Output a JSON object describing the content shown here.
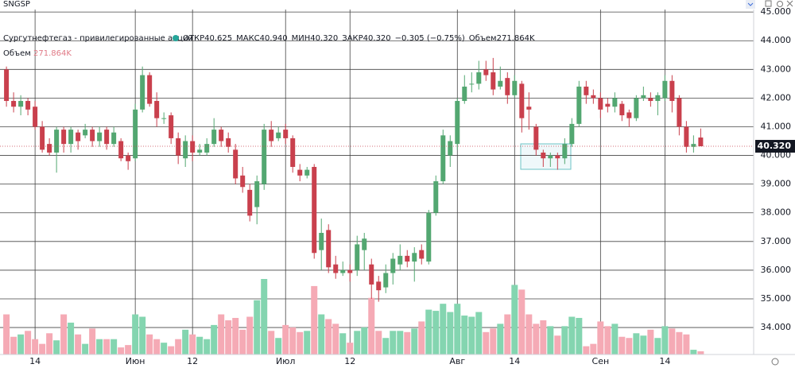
{
  "chart_data": {
    "type": "candlestick",
    "symbol": "SNGSP",
    "title": "Сургутнефтегаз - привилегированные акции",
    "legend_values": [
      "ОТКР40.625",
      "МАКС40.940",
      "МИН40.320",
      "ЗАКР40.320",
      "−0.305 (−0.75%)",
      "Объем271.864K"
    ],
    "volume_label": "Объем",
    "volume_value": "271.864K",
    "up_color": "#53a771",
    "down_color": "#c9404d",
    "up_volume_color": "#84d5b0",
    "down_volume_color": "#f5aab5",
    "grid": true,
    "xlim": [
      -0.9,
      104.4
    ],
    "xticks": [
      {
        "value": 4,
        "label": "14"
      },
      {
        "value": 18,
        "label": "Июн"
      },
      {
        "value": 26,
        "label": "12"
      },
      {
        "value": 39,
        "label": "Июл"
      },
      {
        "value": 48,
        "label": "12"
      },
      {
        "value": 63,
        "label": "Авг"
      },
      {
        "value": 71,
        "label": "14"
      },
      {
        "value": 83,
        "label": "Сен"
      },
      {
        "value": 92,
        "label": "14"
      }
    ],
    "ylim": [
      33.06,
      45.42
    ],
    "yticks": [
      {
        "value": 34,
        "label": "34.000"
      },
      {
        "value": 35,
        "label": "35.000"
      },
      {
        "value": 36,
        "label": "36.000"
      },
      {
        "value": 37,
        "label": "37.000"
      },
      {
        "value": 38,
        "label": "38.000"
      },
      {
        "value": 39,
        "label": "39.000"
      },
      {
        "value": 40,
        "label": "40.000"
      },
      {
        "value": 41,
        "label": "41.000"
      },
      {
        "value": 42,
        "label": "42.000"
      },
      {
        "value": 43,
        "label": "43.000"
      },
      {
        "value": 44,
        "label": "44.000"
      },
      {
        "value": 45,
        "label": "45.000"
      }
    ],
    "last_price": {
      "value": 40.32,
      "label": "40.320"
    },
    "open": [
      43.0,
      41.9,
      41.7,
      41.9,
      41.7,
      41.0,
      40.4,
      40.1,
      40.9,
      40.4,
      40.8,
      40.7,
      40.9,
      40.5,
      40.9,
      40.4,
      40.5,
      40.0,
      39.9,
      41.6,
      42.8,
      41.9,
      41.3,
      41.4,
      40.6,
      39.9,
      40.5,
      40.1,
      40.1,
      40.4,
      40.9,
      40.6,
      40.2,
      39.3,
      38.8,
      38.2,
      39.0,
      40.9,
      40.6,
      40.9,
      40.6,
      39.5,
      39.3,
      39.6,
      36.7,
      37.4,
      36.2,
      35.9,
      36.0,
      36.0,
      36.7,
      36.2,
      35.6,
      35.4,
      35.9,
      36.2,
      36.5,
      36.3,
      36.7,
      36.3,
      38.0,
      39.1,
      40.0,
      40.4,
      41.9,
      42.5,
      42.5,
      43.0,
      42.9,
      42.4,
      42.7,
      42.1,
      42.5,
      41.7,
      41.0,
      40.1,
      39.9,
      40.0,
      39.9,
      40.4,
      41.1,
      42.4,
      42.1,
      42.0,
      41.8,
      41.7,
      41.8,
      41.5,
      41.3,
      42.0,
      42.0,
      41.9,
      42.0,
      42.6,
      42.0,
      41.0,
      40.3,
      40.625
    ],
    "high": [
      43.1,
      42.2,
      42.1,
      42.0,
      41.9,
      41.2,
      40.6,
      41.0,
      41.0,
      41.0,
      40.9,
      41.1,
      41.0,
      41.0,
      41.0,
      41.0,
      40.6,
      40.1,
      41.8,
      43.1,
      42.9,
      42.2,
      41.5,
      41.5,
      40.8,
      40.7,
      40.7,
      40.4,
      40.6,
      41.3,
      41.0,
      40.8,
      40.4,
      39.6,
      39.0,
      39.3,
      41.1,
      41.2,
      41.0,
      41.1,
      40.7,
      39.7,
      39.6,
      39.7,
      37.8,
      37.6,
      36.5,
      36.3,
      36.2,
      37.2,
      37.3,
      36.4,
      35.8,
      36.2,
      36.6,
      36.9,
      36.7,
      36.8,
      36.9,
      38.1,
      39.3,
      40.9,
      40.7,
      42.0,
      42.8,
      42.9,
      43.3,
      43.3,
      43.4,
      43.1,
      42.9,
      42.8,
      42.6,
      42.2,
      41.1,
      40.2,
      40.1,
      40.1,
      40.6,
      41.3,
      42.6,
      42.6,
      42.3,
      42.2,
      42.0,
      42.2,
      41.9,
      41.6,
      42.1,
      42.4,
      42.2,
      42.2,
      42.8,
      42.8,
      42.1,
      41.2,
      40.7,
      40.94
    ],
    "low": [
      41.7,
      41.5,
      41.4,
      41.4,
      40.9,
      40.1,
      40.0,
      39.4,
      40.1,
      40.1,
      40.2,
      40.6,
      40.3,
      40.3,
      40.2,
      40.3,
      39.8,
      39.5,
      39.8,
      41.5,
      41.7,
      41.0,
      41.1,
      40.4,
      39.7,
      39.6,
      39.8,
      40.0,
      40.0,
      40.3,
      40.3,
      40.1,
      39.0,
      38.7,
      37.7,
      37.6,
      38.8,
      40.3,
      40.5,
      40.4,
      39.4,
      39.1,
      39.2,
      36.4,
      36.0,
      35.9,
      35.7,
      35.8,
      35.6,
      35.8,
      36.0,
      35.0,
      34.9,
      35.2,
      35.5,
      36.0,
      36.1,
      35.6,
      36.2,
      36.2,
      37.9,
      39.0,
      39.6,
      40.2,
      41.8,
      42.2,
      42.3,
      42.6,
      42.1,
      42.3,
      41.8,
      42.0,
      40.8,
      40.9,
      40.0,
      39.6,
      39.6,
      39.5,
      39.7,
      40.3,
      41.0,
      41.8,
      41.8,
      41.3,
      41.5,
      41.5,
      41.2,
      41.0,
      41.2,
      41.9,
      41.7,
      41.4,
      41.9,
      41.5,
      40.7,
      40.1,
      40.1,
      40.32
    ],
    "close": [
      41.9,
      41.7,
      41.9,
      41.6,
      41.0,
      40.2,
      40.1,
      40.9,
      40.4,
      40.9,
      40.5,
      40.9,
      40.5,
      40.8,
      40.4,
      40.8,
      39.9,
      39.8,
      41.6,
      42.8,
      41.8,
      41.3,
      41.3,
      40.6,
      40.0,
      40.5,
      40.1,
      40.2,
      40.4,
      40.9,
      40.5,
      40.3,
      39.2,
      38.9,
      37.9,
      39.1,
      40.9,
      40.5,
      40.8,
      40.6,
      39.6,
      39.3,
      39.5,
      36.6,
      37.3,
      36.1,
      35.9,
      36.0,
      35.9,
      36.9,
      37.1,
      35.5,
      35.3,
      35.9,
      36.4,
      36.5,
      36.3,
      36.6,
      36.4,
      38.0,
      39.1,
      40.7,
      40.5,
      41.9,
      42.4,
      42.5,
      42.9,
      42.8,
      42.3,
      42.6,
      42.1,
      42.6,
      41.3,
      41.6,
      40.2,
      39.9,
      40.0,
      39.9,
      40.4,
      41.1,
      42.4,
      42.1,
      42.0,
      41.6,
      41.7,
      42.0,
      41.4,
      41.3,
      42.0,
      42.1,
      41.9,
      42.1,
      42.6,
      41.9,
      41.0,
      40.3,
      40.4,
      40.32
    ],
    "volume": [
      3400,
      1500,
      1700,
      2000,
      1300,
      900,
      1800,
      1200,
      3400,
      2700,
      1700,
      900,
      2200,
      1300,
      1300,
      1300,
      600,
      800,
      3400,
      3200,
      1700,
      1300,
      1000,
      700,
      1300,
      2100,
      1700,
      1500,
      1300,
      2500,
      3400,
      2900,
      3100,
      2100,
      3200,
      4600,
      6400,
      2000,
      1400,
      2500,
      2300,
      1900,
      2000,
      5800,
      3400,
      3000,
      2600,
      1800,
      1000,
      2000,
      2300,
      4800,
      2000,
      1400,
      2000,
      2000,
      1900,
      2200,
      2800,
      3800,
      3700,
      4300,
      3600,
      4300,
      3300,
      3200,
      3600,
      1900,
      2200,
      2600,
      3400,
      5900,
      5500,
      3400,
      2600,
      2900,
      2400,
      1600,
      2400,
      3200,
      3100,
      700,
      900,
      2800,
      2400,
      2600,
      1500,
      1400,
      1800,
      1600,
      2100,
      1400,
      2400,
      2200,
      1900,
      1700,
      400,
      271.864
    ]
  }
}
